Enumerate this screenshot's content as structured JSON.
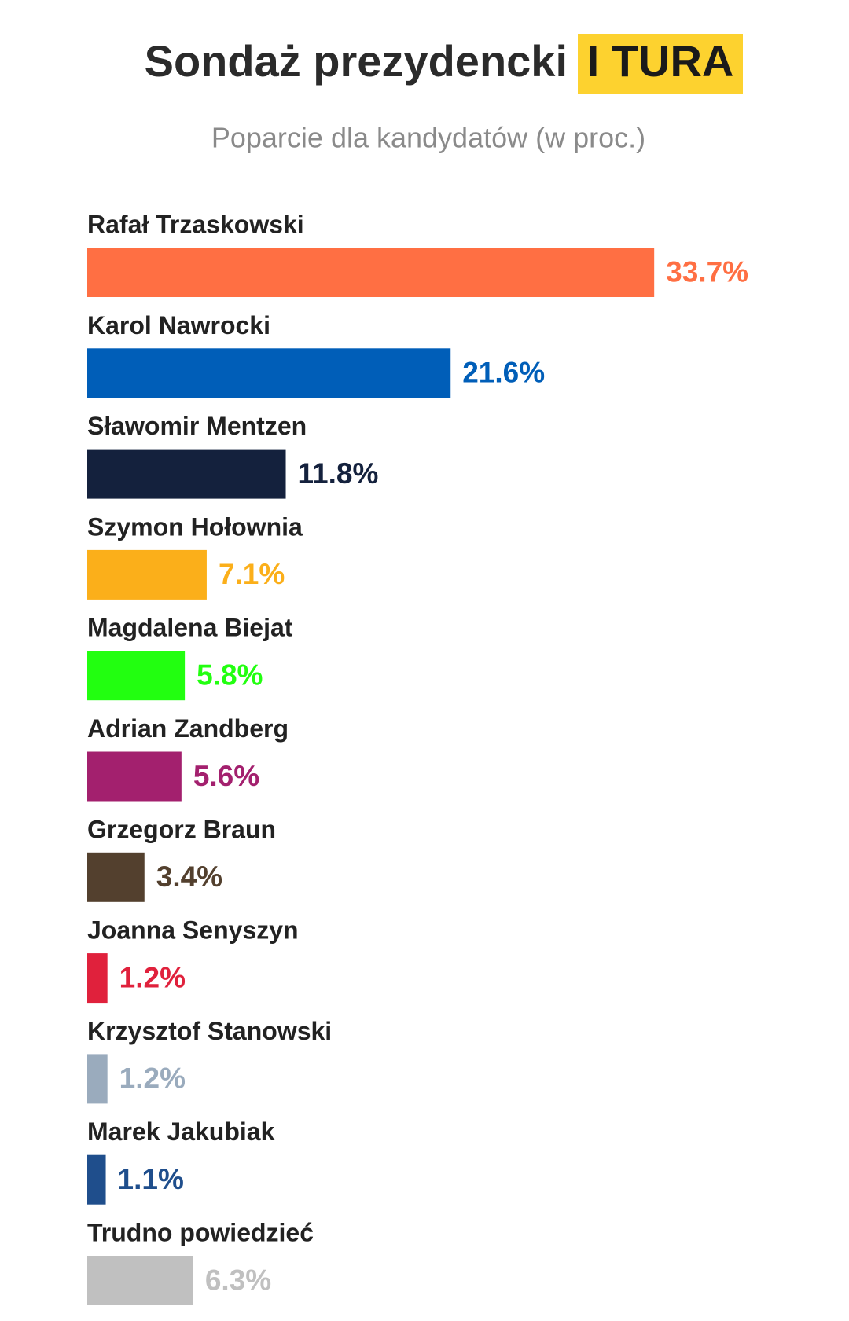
{
  "chart_data": {
    "type": "bar",
    "orientation": "horizontal",
    "title": "Sondaż prezydencki",
    "title_highlight": "I TURA",
    "subtitle": "Poparcie dla kandydatów (w proc.)",
    "categories": [
      "Rafał Trzaskowski",
      "Karol Nawrocki",
      "Sławomir Mentzen",
      "Szymon Hołownia",
      "Magdalena Biejat",
      "Adrian Zandberg",
      "Grzegorz Braun",
      "Joanna Senyszyn",
      "Krzysztof Stanowski",
      "Marek Jakubiak",
      "Trudno powiedzieć"
    ],
    "values": [
      33.7,
      21.6,
      11.8,
      7.1,
      5.8,
      5.6,
      3.4,
      1.2,
      1.2,
      1.1,
      6.3
    ],
    "value_labels": [
      "33.7%",
      "21.6%",
      "11.8%",
      "7.1%",
      "5.8%",
      "5.6%",
      "3.4%",
      "1.2%",
      "1.2%",
      "1.1%",
      "6.3%"
    ],
    "colors": [
      "#ff6f43",
      "#005eb8",
      "#14213d",
      "#fbaf1a",
      "#22ff10",
      "#a3206e",
      "#53402e",
      "#e0213c",
      "#9aabbd",
      "#1f4e8c",
      "#c0c0c0"
    ],
    "highlight_color": "#fdd22f"
  }
}
